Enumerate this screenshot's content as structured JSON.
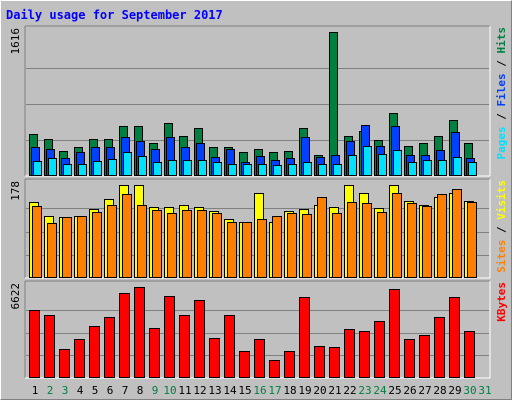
{
  "chart_data": {
    "title": "Daily usage for September 2017",
    "days": [
      "1",
      "2",
      "3",
      "4",
      "5",
      "6",
      "7",
      "8",
      "9",
      "10",
      "11",
      "12",
      "13",
      "14",
      "15",
      "16",
      "17",
      "18",
      "19",
      "20",
      "21",
      "22",
      "23",
      "24",
      "25",
      "26",
      "27",
      "28",
      "29",
      "30",
      "31"
    ],
    "weekend_days": [
      "2",
      "3",
      "9",
      "10",
      "16",
      "17",
      "23",
      "24",
      "30",
      "31"
    ],
    "colors": {
      "hits": "#008040",
      "files": "#0040ff",
      "pages": "#00e0ff",
      "visits": "#ffff00",
      "sites": "#ff8000",
      "kbytes": "#ff0000",
      "weekday_label": "#000000",
      "weekend_label": "#008040",
      "title": "#0000ff"
    },
    "panels": [
      {
        "type": "bar",
        "max_label": "1616",
        "ymax": 1616,
        "right_label_parts": [
          {
            "text": "Pages",
            "color": "#00e0ff"
          },
          {
            "text": " / ",
            "color": "#000000"
          },
          {
            "text": "Files",
            "color": "#0040ff"
          },
          {
            "text": " / ",
            "color": "#000000"
          },
          {
            "text": "Hits",
            "color": "#008040"
          }
        ],
        "series": [
          {
            "key": "hits",
            "values": [
              470,
              418,
              283,
              320,
              410,
              410,
              560,
              560,
              375,
              600,
              445,
              540,
              320,
              325,
              265,
              305,
              265,
              285,
              540,
              240,
              1616,
              445,
              510,
              400,
              710,
              340,
              375,
              450,
              630,
              375,
              null
            ]
          },
          {
            "key": "files",
            "values": [
              320,
              300,
              200,
              265,
              330,
              330,
              440,
              390,
              300,
              440,
              320,
              370,
              210,
              300,
              155,
              230,
              185,
              200,
              440,
              215,
              240,
              390,
              570,
              340,
              560,
              235,
              240,
              295,
              490,
              205,
              null
            ]
          },
          {
            "key": "pages",
            "values": [
              165,
              200,
              130,
              140,
              165,
              190,
              265,
              230,
              160,
              185,
              180,
              175,
              160,
              135,
              130,
              130,
              125,
              140,
              160,
              130,
              135,
              235,
              340,
              245,
              290,
              155,
              175,
              185,
              215,
              160,
              null
            ]
          }
        ]
      },
      {
        "type": "bar",
        "max_label": "178",
        "ymax": 178,
        "right_label_parts": [
          {
            "text": "Sites",
            "color": "#ff8000"
          },
          {
            "text": " / ",
            "color": "#000000"
          },
          {
            "text": "Visits",
            "color": "#ffff00"
          }
        ],
        "series": [
          {
            "key": "visits",
            "values": [
              145,
              118,
              116,
              118,
              132,
              152,
              178,
              178,
              135,
              135,
              140,
              135,
              128,
              112,
              108,
              162,
              108,
              128,
              132,
              140,
              135,
              178,
              163,
              134,
              178,
              148,
              140,
              155,
              163,
              148,
              null
            ]
          },
          {
            "key": "sites",
            "values": [
              138,
              105,
              116,
              118,
              127,
              140,
              160,
              140,
              130,
              125,
              130,
              130,
              125,
              108,
              108,
              112,
              118,
              125,
              123,
              155,
              125,
              145,
              143,
              127,
              163,
              143,
              138,
              160,
              171,
              146,
              null
            ]
          }
        ]
      },
      {
        "type": "bar",
        "max_label": "6622",
        "ymax": 6622,
        "right_label_parts": [
          {
            "text": "KBytes",
            "color": "#ff0000"
          }
        ],
        "series": [
          {
            "key": "kbytes",
            "values": [
              4950,
              4620,
              2120,
              2850,
              3820,
              4450,
              6170,
              6622,
              3620,
              6000,
              4620,
              5650,
              2920,
              4620,
              1950,
              2870,
              1300,
              1950,
              5900,
              2350,
              2220,
              3550,
              3420,
              4140,
              6500,
              2850,
              3150,
              4450,
              5900,
              3420,
              null
            ]
          }
        ]
      }
    ]
  }
}
